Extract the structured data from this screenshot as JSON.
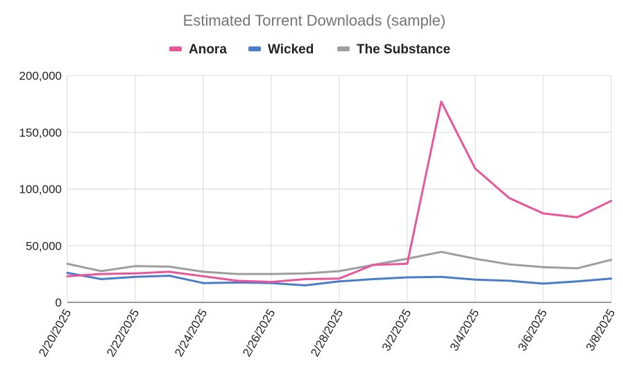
{
  "chart_data": {
    "type": "line",
    "title": "Estimated Torrent Downloads (sample)",
    "xlabel": "",
    "ylabel": "",
    "ylim": [
      0,
      200000
    ],
    "grid": true,
    "legend_position": "top",
    "x": [
      "2/20/2025",
      "2/21/2025",
      "2/22/2025",
      "2/23/2025",
      "2/24/2025",
      "2/25/2025",
      "2/26/2025",
      "2/27/2025",
      "2/28/2025",
      "3/1/2025",
      "3/2/2025",
      "3/3/2025",
      "3/4/2025",
      "3/5/2025",
      "3/6/2025",
      "3/7/2025",
      "3/8/2025"
    ],
    "x_tick_labels": [
      "2/20/2025",
      "2/22/2025",
      "2/24/2025",
      "2/26/2025",
      "2/28/2025",
      "3/2/2025",
      "3/4/2025",
      "3/6/2025",
      "3/8/2025"
    ],
    "y_tick_values": [
      0,
      50000,
      100000,
      150000,
      200000
    ],
    "y_tick_labels": [
      "0",
      "50,000",
      "100,000",
      "150,000",
      "200,000"
    ],
    "series": [
      {
        "name": "Anora",
        "color": "#e8559a",
        "values": [
          23000,
          25000,
          25500,
          27000,
          23000,
          19000,
          18000,
          20500,
          21000,
          33000,
          34000,
          177000,
          118000,
          92000,
          78500,
          75000,
          89500
        ]
      },
      {
        "name": "Wicked",
        "color": "#4a7cc9",
        "values": [
          26000,
          20500,
          22500,
          23500,
          17000,
          17500,
          17000,
          15000,
          18500,
          20500,
          22000,
          22500,
          20000,
          19000,
          16500,
          18500,
          21000
        ]
      },
      {
        "name": "The Substance",
        "color": "#9e9e9e",
        "values": [
          34000,
          27500,
          32000,
          31500,
          27000,
          25000,
          25000,
          25500,
          27500,
          33000,
          38500,
          44500,
          38500,
          33500,
          31000,
          30000,
          37500
        ]
      }
    ]
  }
}
